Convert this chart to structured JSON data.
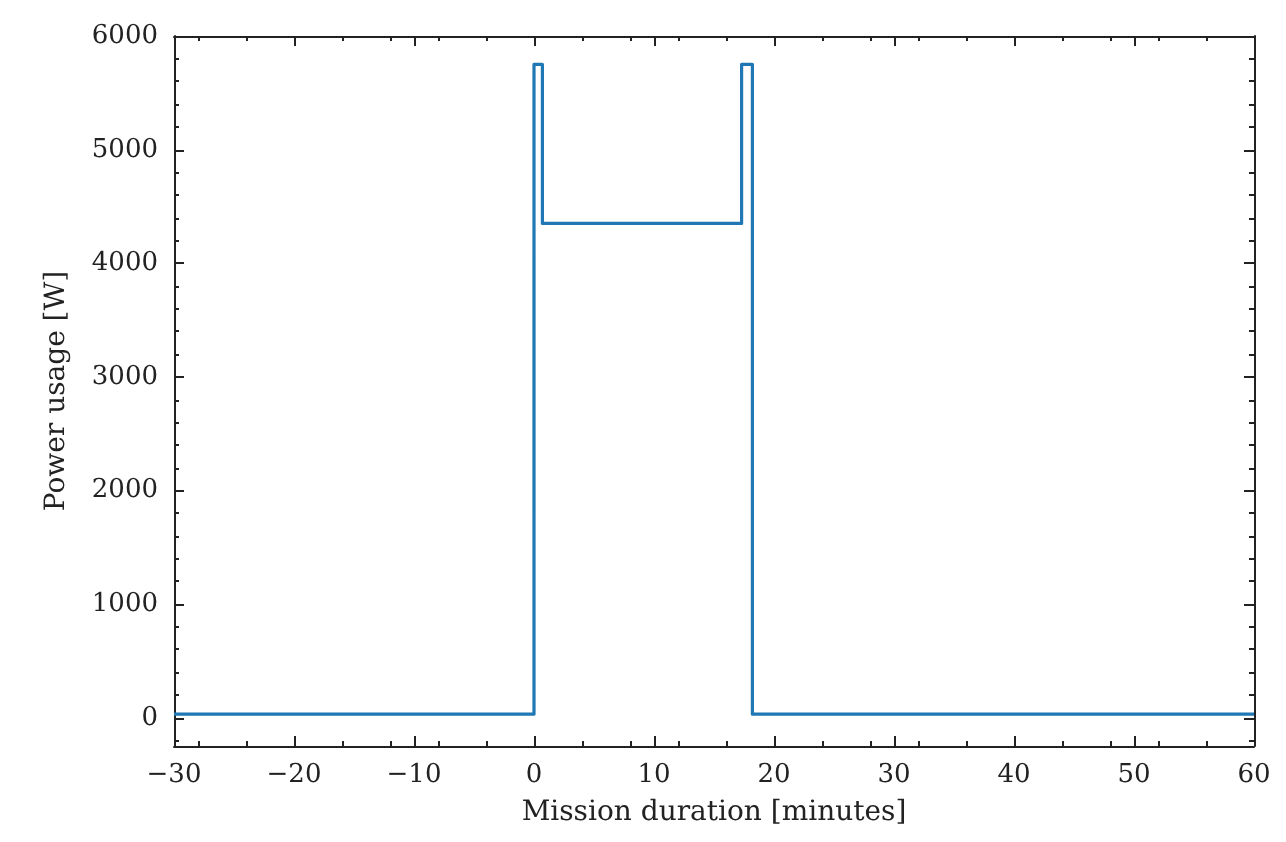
{
  "chart_data": {
    "type": "step",
    "xlabel": "Mission duration [minutes]",
    "ylabel": "Power usage [W]",
    "x": [
      -30,
      0,
      0.7,
      17.3,
      18.2,
      60
    ],
    "series": [
      {
        "color": "#1f77b4",
        "values": [
          30,
          5750,
          4350,
          5750,
          30,
          30
        ]
      }
    ],
    "xlim": [
      -30,
      60
    ],
    "xticks": [
      -30,
      -20,
      -10,
      0,
      10,
      20,
      30,
      40,
      50,
      60
    ],
    "ylim": [
      -250,
      6000
    ],
    "yticks": [
      0,
      1000,
      2000,
      3000,
      4000,
      5000,
      6000
    ],
    "grid": false,
    "marker": "none",
    "line_style": "solid"
  }
}
